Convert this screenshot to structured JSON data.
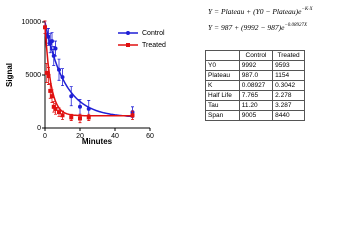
{
  "chart_data": {
    "type": "scatter",
    "x_label": "Minutes",
    "y_label": "Signal",
    "x": [
      0,
      1,
      2,
      3,
      4,
      5,
      6,
      8,
      10,
      15,
      20,
      25,
      50
    ],
    "series": [
      {
        "name": "Control",
        "color": "#1f1fd6",
        "marker": "circle",
        "values": [
          9500,
          8700,
          8600,
          8000,
          8200,
          6800,
          7500,
          5500,
          4800,
          3000,
          2000,
          1800,
          1500
        ],
        "errors": [
          600,
          700,
          800,
          900,
          800,
          900,
          700,
          1000,
          800,
          900,
          700,
          800,
          500
        ]
      },
      {
        "name": "Treated",
        "color": "#e01010",
        "marker": "square",
        "values": [
          9500,
          5200,
          4900,
          3500,
          3000,
          2000,
          1800,
          1500,
          1200,
          1000,
          900,
          1000,
          1200
        ],
        "errors": [
          600,
          900,
          800,
          700,
          600,
          500,
          500,
          400,
          400,
          300,
          400,
          300,
          400
        ]
      }
    ],
    "xlim": [
      0,
      60
    ],
    "xticks": [
      0,
      20,
      40,
      60
    ],
    "ylim": [
      0,
      10000
    ],
    "yticks": [
      0,
      5000,
      10000
    ],
    "legend": "upper right"
  },
  "equations": [
    {
      "main": "Y = Plateau + (Y0 − Plateau)e",
      "exponent": "−K·X"
    },
    {
      "main": "Y = 987 + (9992 − 987)e",
      "exponent": "−0.08927X"
    }
  ],
  "table": {
    "header": [
      "",
      "Control",
      "Treated"
    ],
    "rows": [
      [
        "Y0",
        "9992",
        "9593"
      ],
      [
        "Plateau",
        "987.0",
        "1154"
      ],
      [
        "K",
        "0.08927",
        "0.3042"
      ],
      [
        "Half Life",
        "7.765",
        "2.278"
      ],
      [
        "Tau",
        "11.20",
        "3.287"
      ],
      [
        "Span",
        "9005",
        "8440"
      ]
    ]
  }
}
